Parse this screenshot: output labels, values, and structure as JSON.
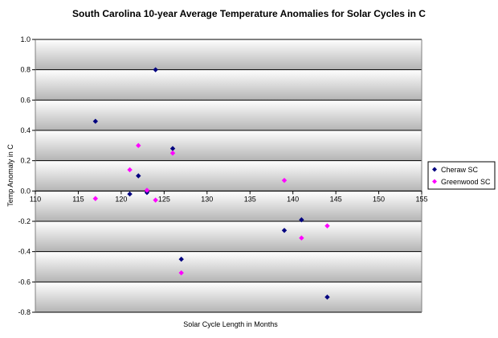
{
  "chart_data": {
    "type": "scatter",
    "title": "South Carolina 10-year Average Temperature Anomalies for Solar Cycles in C",
    "xlabel": "Solar Cycle Length in Months",
    "ylabel": "Temp Anomaly in C",
    "xlim": [
      110,
      155
    ],
    "ylim": [
      -0.8,
      1.0
    ],
    "x_ticks": [
      110,
      115,
      120,
      125,
      130,
      135,
      140,
      145,
      150,
      155
    ],
    "y_ticks": [
      -0.8,
      -0.6,
      -0.4,
      -0.2,
      0.0,
      0.2,
      0.4,
      0.6,
      0.8,
      1.0
    ],
    "x_tick_labels": [
      "110",
      "115",
      "120",
      "125",
      "130",
      "135",
      "140",
      "145",
      "150",
      "155"
    ],
    "y_tick_labels": [
      "-0.8",
      "-0.6",
      "-0.4",
      "-0.2",
      "0.0",
      "0.2",
      "0.4",
      "0.6",
      "0.8",
      "1.0"
    ],
    "grid": "horizontal",
    "legend_position": "right",
    "series": [
      {
        "name": "Cheraw SC",
        "color": "#000080",
        "marker": "diamond",
        "points": [
          {
            "x": 117,
            "y": 0.46
          },
          {
            "x": 121,
            "y": -0.02
          },
          {
            "x": 122,
            "y": 0.1
          },
          {
            "x": 123,
            "y": -0.01
          },
          {
            "x": 124,
            "y": 0.8
          },
          {
            "x": 126,
            "y": 0.28
          },
          {
            "x": 127,
            "y": -0.45
          },
          {
            "x": 139,
            "y": -0.26
          },
          {
            "x": 141,
            "y": -0.19
          },
          {
            "x": 144,
            "y": -0.7
          }
        ]
      },
      {
        "name": "Greenwood SC",
        "color": "#ff00ff",
        "marker": "diamond",
        "points": [
          {
            "x": 117,
            "y": -0.05
          },
          {
            "x": 121,
            "y": 0.14
          },
          {
            "x": 122,
            "y": 0.3
          },
          {
            "x": 123,
            "y": 0.005
          },
          {
            "x": 124,
            "y": -0.06
          },
          {
            "x": 126,
            "y": 0.25
          },
          {
            "x": 127,
            "y": -0.54
          },
          {
            "x": 139,
            "y": 0.07
          },
          {
            "x": 141,
            "y": -0.31
          },
          {
            "x": 144,
            "y": -0.23
          }
        ]
      }
    ]
  }
}
